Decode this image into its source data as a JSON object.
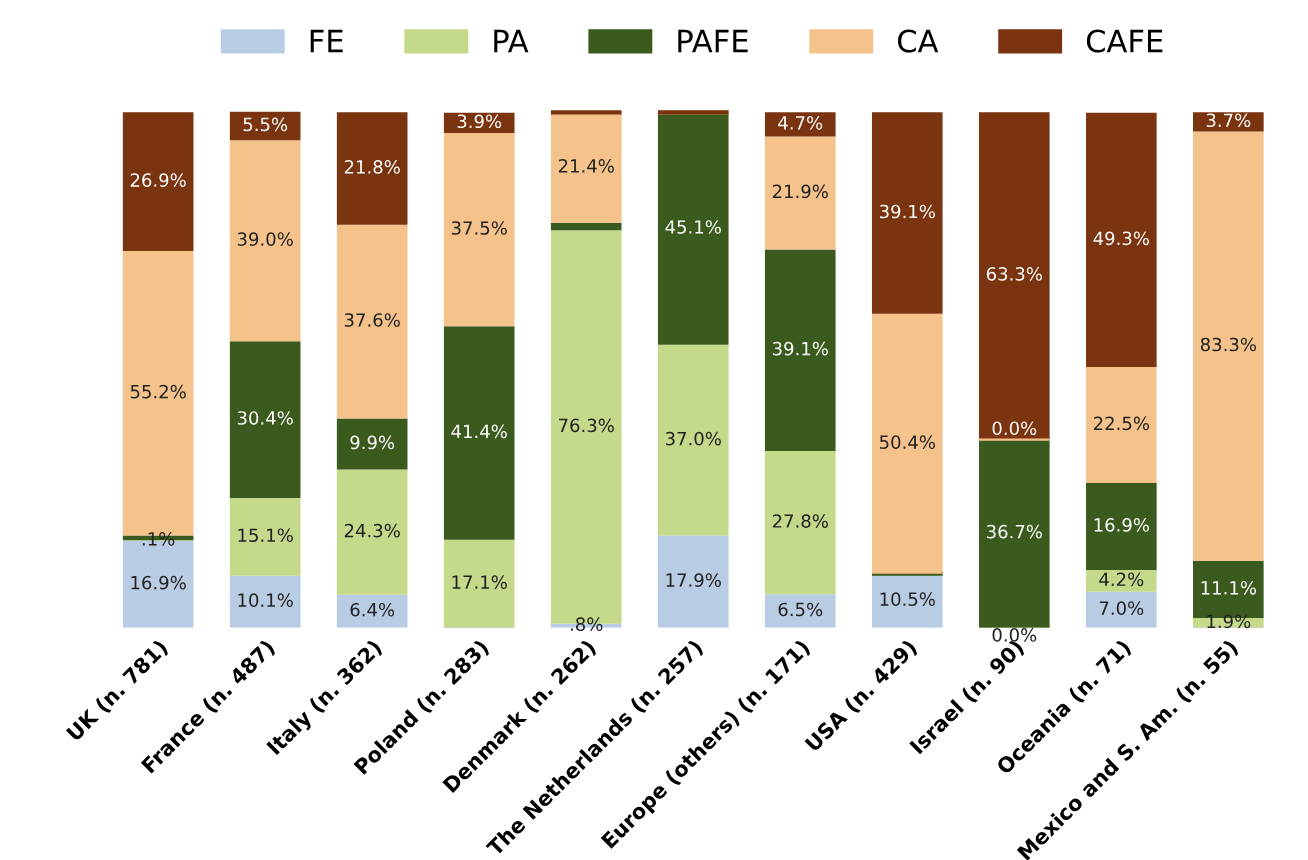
{
  "chart_data": {
    "type": "bar",
    "stacked": true,
    "legend": "top",
    "grid": false,
    "categories": [
      "UK (n. 781)",
      "France (n. 487)",
      "Italy (n. 362)",
      "Poland (n. 283)",
      "Denmark (n. 262)",
      "The Netherlands (n. 257)",
      "Europe (others) (n. 171)",
      "USA (n. 429)",
      "Israel (n. 90)",
      "Oceania (n. 71)",
      "Mexico and S. Am. (n. 55)"
    ],
    "series": [
      {
        "name": "FE",
        "color": "#b8cce4",
        "values": [
          16.9,
          10.1,
          6.4,
          0,
          0.8,
          17.9,
          6.5,
          10.5,
          0.0,
          7.0,
          0
        ],
        "value_labels": [
          "16.9%",
          "10.1%",
          "6.4%",
          null,
          ".8%",
          "17.9%",
          "6.5%",
          "10.5%",
          "0.0%",
          "7.0%",
          null
        ]
      },
      {
        "name": "PA",
        "color": "#c4d98a",
        "values": [
          0.1,
          15.1,
          24.3,
          17.1,
          76.3,
          37.0,
          27.8,
          0,
          0,
          4.2,
          1.9
        ],
        "value_labels": [
          ".1%",
          "15.1%",
          "24.3%",
          "17.1%",
          "76.3%",
          "37.0%",
          "27.8%",
          null,
          null,
          "4.2%",
          "1.9%"
        ]
      },
      {
        "name": "PAFE",
        "color": "#3b5a1e",
        "values": [
          0.9,
          30.4,
          9.9,
          41.4,
          1.5,
          45.1,
          39.1,
          0,
          36.7,
          16.9,
          11.1
        ],
        "value_labels": [
          null,
          "30.4%",
          "9.9%",
          "41.4%",
          null,
          "45.1%",
          "39.1%",
          null,
          "36.7%",
          "16.9%",
          "11.1%"
        ]
      },
      {
        "name": "CA",
        "color": "#f4c28a",
        "values": [
          55.2,
          39.0,
          37.6,
          37.5,
          21.4,
          0,
          21.9,
          50.4,
          0.0,
          22.5,
          83.3
        ],
        "value_labels": [
          "55.2%",
          "39.0%",
          "37.6%",
          "37.5%",
          "21.4%",
          null,
          "21.9%",
          "50.4%",
          "0.0%",
          "22.5%",
          "83.3%"
        ]
      },
      {
        "name": "CAFE",
        "color": "#7a3510",
        "values": [
          26.9,
          5.5,
          21.8,
          3.9,
          0,
          0,
          4.7,
          39.1,
          63.3,
          49.3,
          3.7
        ],
        "value_labels": [
          "26.9%",
          "5.5%",
          "21.8%",
          "3.9%",
          null,
          null,
          "4.7%",
          "39.1%",
          "63.3%",
          "49.3%",
          "3.7%"
        ]
      }
    ]
  }
}
